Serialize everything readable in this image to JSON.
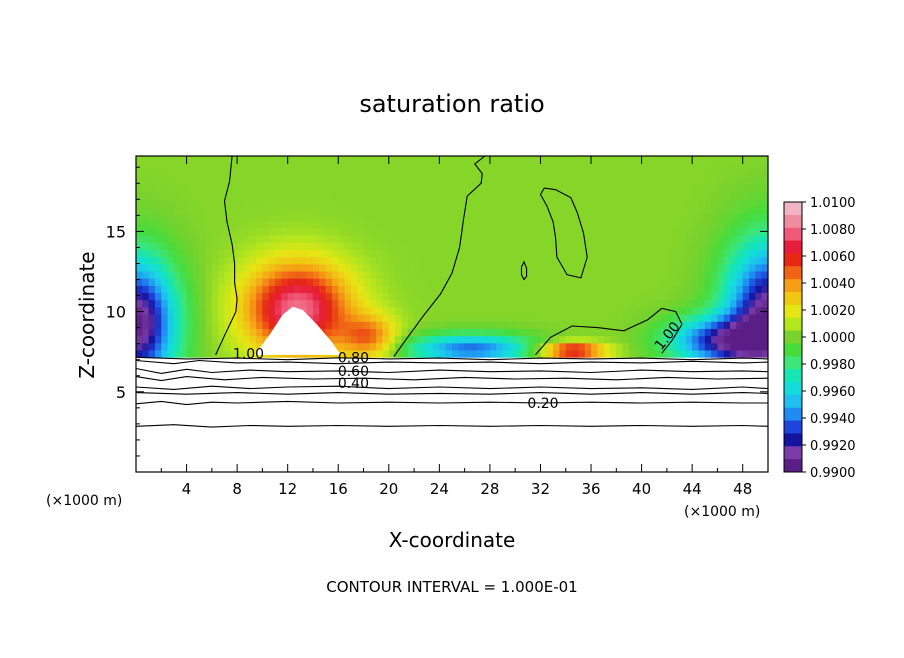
{
  "chart_data": {
    "type": "heatmap",
    "title": "saturation ratio",
    "xlabel": "X-coordinate",
    "ylabel": "Z-coordinate",
    "x_unit_left": "(×1000 m)",
    "x_unit_right": "(×1000 m)",
    "footer": "CONTOUR INTERVAL = 1.000E-01",
    "xlim": [
      0,
      50
    ],
    "ylim": [
      0,
      19.7
    ],
    "x_ticks": [
      4,
      8,
      12,
      16,
      20,
      24,
      28,
      32,
      36,
      40,
      44,
      48
    ],
    "y_ticks": [
      5,
      10,
      15
    ],
    "grid": false,
    "colorbar": {
      "position": "right",
      "range": [
        0.99,
        1.01
      ],
      "labels": [
        "1.0100",
        "1.0080",
        "1.0060",
        "1.0040",
        "1.0020",
        "1.0000",
        "0.9980",
        "0.9960",
        "0.9940",
        "0.9920",
        "0.9900"
      ],
      "stops": [
        {
          "value": 0.99,
          "color": "#5b1e87"
        },
        {
          "value": 0.991,
          "color": "#7a3ca8"
        },
        {
          "value": 0.992,
          "color": "#1414a0"
        },
        {
          "value": 0.993,
          "color": "#1e46dc"
        },
        {
          "value": 0.994,
          "color": "#1e8cf0"
        },
        {
          "value": 0.995,
          "color": "#1ec0f0"
        },
        {
          "value": 0.996,
          "color": "#14dcdc"
        },
        {
          "value": 0.997,
          "color": "#14e6b4"
        },
        {
          "value": 0.998,
          "color": "#3ce678"
        },
        {
          "value": 0.999,
          "color": "#46dc3c"
        },
        {
          "value": 1.0,
          "color": "#7ad22c"
        },
        {
          "value": 1.001,
          "color": "#b4e61e"
        },
        {
          "value": 1.002,
          "color": "#e6e614"
        },
        {
          "value": 1.003,
          "color": "#f0c814"
        },
        {
          "value": 1.004,
          "color": "#f5a014"
        },
        {
          "value": 1.005,
          "color": "#f06414"
        },
        {
          "value": 1.006,
          "color": "#e62814"
        },
        {
          "value": 1.007,
          "color": "#e61e3c"
        },
        {
          "value": 1.008,
          "color": "#f05a78"
        },
        {
          "value": 1.009,
          "color": "#f08ca0"
        },
        {
          "value": 1.01,
          "color": "#f0b4c4"
        }
      ]
    },
    "background_level": 1.0002,
    "features": [
      {
        "kind": "moist-dome",
        "x": 12.8,
        "z": 10.2,
        "sx": 4.2,
        "sz": 2.9,
        "value": 1.0085
      },
      {
        "kind": "moist-lobe",
        "x": 18.5,
        "z": 8.4,
        "sx": 2.2,
        "sz": 1.4,
        "value": 1.0045
      },
      {
        "kind": "moist-band",
        "x": 34.5,
        "z": 7.6,
        "sx": 2.6,
        "sz": 0.5,
        "value": 1.0075
      },
      {
        "kind": "dry-edge",
        "x": 0.0,
        "z": 9.3,
        "sx": 3.2,
        "sz": 4.0,
        "value": 0.99
      },
      {
        "kind": "dry-edge",
        "x": 50.0,
        "z": 9.8,
        "sx": 3.4,
        "sz": 4.5,
        "value": 0.9905
      },
      {
        "kind": "dry-strip",
        "x": 26.5,
        "z": 7.7,
        "sx": 5.0,
        "sz": 0.9,
        "value": 0.9935
      },
      {
        "kind": "dry-strip",
        "x": 46.0,
        "z": 8.2,
        "sx": 4.0,
        "sz": 1.5,
        "value": 0.993
      }
    ],
    "contours": [
      {
        "level": 1.0,
        "label": "1.00",
        "label_at": [
          8.9,
          7.4
        ],
        "label_angle": 0,
        "path": [
          [
            6.3,
            7.3
          ],
          [
            7.0,
            8.5
          ],
          [
            7.9,
            10.0
          ],
          [
            8.0,
            10.8
          ],
          [
            7.8,
            11.8
          ],
          [
            7.8,
            13.0
          ],
          [
            7.6,
            14.2
          ],
          [
            7.2,
            15.6
          ],
          [
            7.0,
            16.9
          ],
          [
            7.4,
            18.1
          ],
          [
            7.6,
            19.7
          ]
        ]
      },
      {
        "level": 1.0,
        "label": "",
        "label_at": null,
        "label_angle": 0,
        "path": [
          [
            20.4,
            7.2
          ],
          [
            21.4,
            8.3
          ],
          [
            22.7,
            9.7
          ],
          [
            24.1,
            11.1
          ],
          [
            25.0,
            12.4
          ],
          [
            25.6,
            14.0
          ],
          [
            25.9,
            15.7
          ],
          [
            26.2,
            17.2
          ],
          [
            27.3,
            18.0
          ],
          [
            27.4,
            18.6
          ],
          [
            26.8,
            19.2
          ],
          [
            27.6,
            19.7
          ]
        ]
      },
      {
        "level": 1.0,
        "label": "",
        "label_at": null,
        "label_angle": 0,
        "path": [
          [
            32.0,
            17.3
          ],
          [
            32.5,
            16.6
          ],
          [
            33.0,
            15.6
          ],
          [
            33.2,
            14.6
          ],
          [
            33.3,
            13.4
          ],
          [
            34.1,
            12.3
          ],
          [
            35.2,
            12.1
          ],
          [
            35.7,
            13.4
          ],
          [
            35.4,
            14.9
          ],
          [
            34.9,
            16.2
          ],
          [
            34.4,
            17.1
          ],
          [
            33.2,
            17.6
          ],
          [
            32.3,
            17.7
          ],
          [
            32.0,
            17.3
          ]
        ],
        "closed": true
      },
      {
        "level": 1.0,
        "label": "",
        "label_at": null,
        "label_angle": 0,
        "path": [
          [
            30.7,
            13.1
          ],
          [
            30.9,
            12.7
          ],
          [
            30.9,
            12.2
          ],
          [
            30.7,
            12.0
          ],
          [
            30.5,
            12.3
          ],
          [
            30.5,
            12.8
          ],
          [
            30.7,
            13.1
          ]
        ],
        "closed": true
      },
      {
        "level": 1.0,
        "label": "1.00",
        "label_at": [
          42.0,
          8.5
        ],
        "label_angle": -52,
        "path": [
          [
            31.6,
            7.3
          ],
          [
            32.8,
            8.4
          ],
          [
            34.5,
            9.1
          ],
          [
            36.5,
            9.0
          ],
          [
            38.6,
            8.8
          ],
          [
            40.5,
            9.5
          ],
          [
            41.6,
            10.2
          ],
          [
            42.7,
            10.0
          ],
          [
            43.2,
            9.2
          ],
          [
            42.4,
            8.2
          ],
          [
            41.6,
            7.4
          ]
        ]
      },
      {
        "level": 0.8,
        "label": "0.80",
        "label_at": [
          17.2,
          7.15
        ],
        "label_angle": 0,
        "path": [
          [
            0,
            7.15
          ],
          [
            4,
            7.05
          ],
          [
            8,
            7.1
          ],
          [
            12,
            7.0
          ],
          [
            16,
            7.12
          ],
          [
            20,
            7.05
          ],
          [
            24,
            7.1
          ],
          [
            28,
            7.0
          ],
          [
            32,
            7.1
          ],
          [
            36,
            7.05
          ],
          [
            40,
            7.1
          ],
          [
            44,
            7.0
          ],
          [
            48,
            7.1
          ],
          [
            50,
            7.05
          ]
        ]
      },
      {
        "level": 0.7,
        "label": "",
        "label_at": null,
        "label_angle": 0,
        "path": [
          [
            0,
            6.95
          ],
          [
            3,
            6.75
          ],
          [
            5,
            6.95
          ],
          [
            8,
            6.8
          ],
          [
            12,
            6.85
          ],
          [
            16,
            6.75
          ],
          [
            20,
            6.85
          ],
          [
            24,
            6.8
          ],
          [
            28,
            6.85
          ],
          [
            32,
            6.75
          ],
          [
            36,
            6.85
          ],
          [
            40,
            6.8
          ],
          [
            44,
            6.9
          ],
          [
            48,
            6.8
          ],
          [
            50,
            6.85
          ]
        ]
      },
      {
        "level": 0.6,
        "label": "0.60",
        "label_at": [
          17.2,
          6.3
        ],
        "label_angle": 0,
        "path": [
          [
            0,
            6.45
          ],
          [
            2,
            6.15
          ],
          [
            4,
            6.4
          ],
          [
            6,
            6.2
          ],
          [
            9,
            6.35
          ],
          [
            12,
            6.25
          ],
          [
            16,
            6.3
          ],
          [
            20,
            6.2
          ],
          [
            24,
            6.35
          ],
          [
            28,
            6.25
          ],
          [
            32,
            6.3
          ],
          [
            36,
            6.2
          ],
          [
            40,
            6.35
          ],
          [
            44,
            6.25
          ],
          [
            48,
            6.3
          ],
          [
            50,
            6.25
          ]
        ]
      },
      {
        "level": 0.5,
        "label": "",
        "label_at": null,
        "label_angle": 0,
        "path": [
          [
            0,
            5.95
          ],
          [
            2,
            5.7
          ],
          [
            4,
            5.95
          ],
          [
            7,
            5.75
          ],
          [
            10,
            5.9
          ],
          [
            14,
            5.8
          ],
          [
            18,
            5.85
          ],
          [
            22,
            5.75
          ],
          [
            26,
            5.9
          ],
          [
            30,
            5.8
          ],
          [
            34,
            5.85
          ],
          [
            38,
            5.75
          ],
          [
            42,
            5.9
          ],
          [
            46,
            5.8
          ],
          [
            50,
            5.85
          ]
        ]
      },
      {
        "level": 0.4,
        "label": "0.40",
        "label_at": [
          17.2,
          5.55
        ],
        "label_angle": 0,
        "path": [
          [
            0,
            5.3
          ],
          [
            3,
            5.15
          ],
          [
            6,
            5.35
          ],
          [
            9,
            5.2
          ],
          [
            12,
            5.3
          ],
          [
            16,
            5.35
          ],
          [
            20,
            5.2
          ],
          [
            24,
            5.3
          ],
          [
            28,
            5.2
          ],
          [
            32,
            5.3
          ],
          [
            36,
            5.2
          ],
          [
            40,
            5.25
          ],
          [
            44,
            5.15
          ],
          [
            48,
            5.3
          ],
          [
            50,
            5.2
          ]
        ]
      },
      {
        "level": 0.3,
        "label": "",
        "label_at": null,
        "label_angle": 0,
        "path": [
          [
            0,
            4.95
          ],
          [
            4,
            4.85
          ],
          [
            8,
            4.95
          ],
          [
            12,
            4.85
          ],
          [
            16,
            4.95
          ],
          [
            20,
            4.85
          ],
          [
            24,
            4.9
          ],
          [
            28,
            4.85
          ],
          [
            32,
            4.95
          ],
          [
            36,
            4.85
          ],
          [
            40,
            4.95
          ],
          [
            44,
            4.85
          ],
          [
            48,
            4.95
          ],
          [
            50,
            4.9
          ]
        ]
      },
      {
        "level": 0.2,
        "label": "0.20",
        "label_at": [
          32.2,
          4.3
        ],
        "label_angle": 0,
        "path": [
          [
            0,
            4.25
          ],
          [
            2,
            4.4
          ],
          [
            4,
            4.2
          ],
          [
            6,
            4.35
          ],
          [
            8,
            4.3
          ],
          [
            12,
            4.4
          ],
          [
            16,
            4.3
          ],
          [
            20,
            4.35
          ],
          [
            24,
            4.3
          ],
          [
            28,
            4.35
          ],
          [
            32,
            4.3
          ],
          [
            36,
            4.35
          ],
          [
            40,
            4.3
          ],
          [
            44,
            4.35
          ],
          [
            48,
            4.3
          ],
          [
            50,
            4.3
          ]
        ]
      },
      {
        "level": 0.1,
        "label": "",
        "label_at": null,
        "label_angle": 0,
        "path": [
          [
            0,
            2.85
          ],
          [
            3,
            2.95
          ],
          [
            6,
            2.8
          ],
          [
            9,
            2.9
          ],
          [
            12,
            2.85
          ],
          [
            16,
            2.9
          ],
          [
            20,
            2.85
          ],
          [
            24,
            2.9
          ],
          [
            28,
            2.85
          ],
          [
            32,
            2.9
          ],
          [
            36,
            2.85
          ],
          [
            40,
            2.9
          ],
          [
            44,
            2.85
          ],
          [
            48,
            2.9
          ],
          [
            50,
            2.85
          ]
        ]
      }
    ]
  }
}
